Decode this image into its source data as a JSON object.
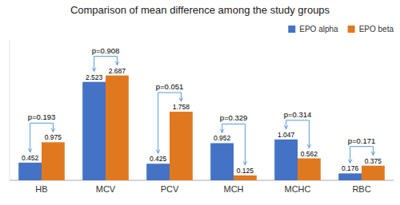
{
  "chart_data": {
    "type": "bar",
    "title": "Comparison of mean difference among the study groups",
    "categories": [
      "HB",
      "MCV",
      "PCV",
      "MCH",
      "MCHC",
      "RBC"
    ],
    "series": [
      {
        "name": "EPO alpha",
        "color": "#4472C4",
        "values": [
          0.452,
          2.523,
          0.425,
          0.952,
          1.047,
          0.176
        ]
      },
      {
        "name": "EPO beta",
        "color": "#E07820",
        "values": [
          0.975,
          2.687,
          1.758,
          0.125,
          0.562,
          0.375
        ]
      }
    ],
    "annotations": [
      "p=0.193",
      "p=0.908",
      "p=0.051",
      "p=0.329",
      "p=0.314",
      "p=0.171"
    ],
    "ylim": [
      0,
      3.6
    ],
    "data_labels": true,
    "legend": "upper right",
    "grid": false,
    "tick_labels": "x"
  }
}
